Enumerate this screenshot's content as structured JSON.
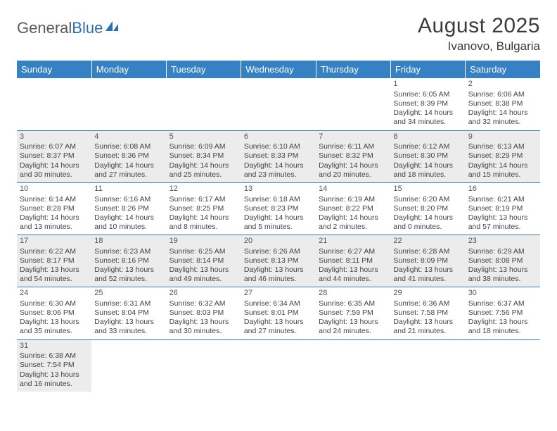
{
  "logo": {
    "text1": "General",
    "text2": "Blue"
  },
  "title": "August 2025",
  "location": "Ivanovo, Bulgaria",
  "colors": {
    "header_bg": "#3581c4",
    "header_text": "#ffffff",
    "shaded_bg": "#ececec",
    "border": "#3581c4",
    "logo_gray": "#5a5a5a",
    "logo_blue": "#2b6fb0"
  },
  "weekdays": [
    "Sunday",
    "Monday",
    "Tuesday",
    "Wednesday",
    "Thursday",
    "Friday",
    "Saturday"
  ],
  "weeks": [
    [
      {
        "day": "",
        "text": ""
      },
      {
        "day": "",
        "text": ""
      },
      {
        "day": "",
        "text": ""
      },
      {
        "day": "",
        "text": ""
      },
      {
        "day": "",
        "text": ""
      },
      {
        "day": "1",
        "text": "Sunrise: 6:05 AM\nSunset: 8:39 PM\nDaylight: 14 hours and 34 minutes."
      },
      {
        "day": "2",
        "text": "Sunrise: 6:06 AM\nSunset: 8:38 PM\nDaylight: 14 hours and 32 minutes."
      }
    ],
    [
      {
        "day": "3",
        "text": "Sunrise: 6:07 AM\nSunset: 8:37 PM\nDaylight: 14 hours and 30 minutes."
      },
      {
        "day": "4",
        "text": "Sunrise: 6:08 AM\nSunset: 8:36 PM\nDaylight: 14 hours and 27 minutes."
      },
      {
        "day": "5",
        "text": "Sunrise: 6:09 AM\nSunset: 8:34 PM\nDaylight: 14 hours and 25 minutes."
      },
      {
        "day": "6",
        "text": "Sunrise: 6:10 AM\nSunset: 8:33 PM\nDaylight: 14 hours and 23 minutes."
      },
      {
        "day": "7",
        "text": "Sunrise: 6:11 AM\nSunset: 8:32 PM\nDaylight: 14 hours and 20 minutes."
      },
      {
        "day": "8",
        "text": "Sunrise: 6:12 AM\nSunset: 8:30 PM\nDaylight: 14 hours and 18 minutes."
      },
      {
        "day": "9",
        "text": "Sunrise: 6:13 AM\nSunset: 8:29 PM\nDaylight: 14 hours and 15 minutes."
      }
    ],
    [
      {
        "day": "10",
        "text": "Sunrise: 6:14 AM\nSunset: 8:28 PM\nDaylight: 14 hours and 13 minutes."
      },
      {
        "day": "11",
        "text": "Sunrise: 6:16 AM\nSunset: 8:26 PM\nDaylight: 14 hours and 10 minutes."
      },
      {
        "day": "12",
        "text": "Sunrise: 6:17 AM\nSunset: 8:25 PM\nDaylight: 14 hours and 8 minutes."
      },
      {
        "day": "13",
        "text": "Sunrise: 6:18 AM\nSunset: 8:23 PM\nDaylight: 14 hours and 5 minutes."
      },
      {
        "day": "14",
        "text": "Sunrise: 6:19 AM\nSunset: 8:22 PM\nDaylight: 14 hours and 2 minutes."
      },
      {
        "day": "15",
        "text": "Sunrise: 6:20 AM\nSunset: 8:20 PM\nDaylight: 14 hours and 0 minutes."
      },
      {
        "day": "16",
        "text": "Sunrise: 6:21 AM\nSunset: 8:19 PM\nDaylight: 13 hours and 57 minutes."
      }
    ],
    [
      {
        "day": "17",
        "text": "Sunrise: 6:22 AM\nSunset: 8:17 PM\nDaylight: 13 hours and 54 minutes."
      },
      {
        "day": "18",
        "text": "Sunrise: 6:23 AM\nSunset: 8:16 PM\nDaylight: 13 hours and 52 minutes."
      },
      {
        "day": "19",
        "text": "Sunrise: 6:25 AM\nSunset: 8:14 PM\nDaylight: 13 hours and 49 minutes."
      },
      {
        "day": "20",
        "text": "Sunrise: 6:26 AM\nSunset: 8:13 PM\nDaylight: 13 hours and 46 minutes."
      },
      {
        "day": "21",
        "text": "Sunrise: 6:27 AM\nSunset: 8:11 PM\nDaylight: 13 hours and 44 minutes."
      },
      {
        "day": "22",
        "text": "Sunrise: 6:28 AM\nSunset: 8:09 PM\nDaylight: 13 hours and 41 minutes."
      },
      {
        "day": "23",
        "text": "Sunrise: 6:29 AM\nSunset: 8:08 PM\nDaylight: 13 hours and 38 minutes."
      }
    ],
    [
      {
        "day": "24",
        "text": "Sunrise: 6:30 AM\nSunset: 8:06 PM\nDaylight: 13 hours and 35 minutes."
      },
      {
        "day": "25",
        "text": "Sunrise: 6:31 AM\nSunset: 8:04 PM\nDaylight: 13 hours and 33 minutes."
      },
      {
        "day": "26",
        "text": "Sunrise: 6:32 AM\nSunset: 8:03 PM\nDaylight: 13 hours and 30 minutes."
      },
      {
        "day": "27",
        "text": "Sunrise: 6:34 AM\nSunset: 8:01 PM\nDaylight: 13 hours and 27 minutes."
      },
      {
        "day": "28",
        "text": "Sunrise: 6:35 AM\nSunset: 7:59 PM\nDaylight: 13 hours and 24 minutes."
      },
      {
        "day": "29",
        "text": "Sunrise: 6:36 AM\nSunset: 7:58 PM\nDaylight: 13 hours and 21 minutes."
      },
      {
        "day": "30",
        "text": "Sunrise: 6:37 AM\nSunset: 7:56 PM\nDaylight: 13 hours and 18 minutes."
      }
    ],
    [
      {
        "day": "31",
        "text": "Sunrise: 6:38 AM\nSunset: 7:54 PM\nDaylight: 13 hours and 16 minutes."
      },
      {
        "day": "",
        "text": ""
      },
      {
        "day": "",
        "text": ""
      },
      {
        "day": "",
        "text": ""
      },
      {
        "day": "",
        "text": ""
      },
      {
        "day": "",
        "text": ""
      },
      {
        "day": "",
        "text": ""
      }
    ]
  ]
}
